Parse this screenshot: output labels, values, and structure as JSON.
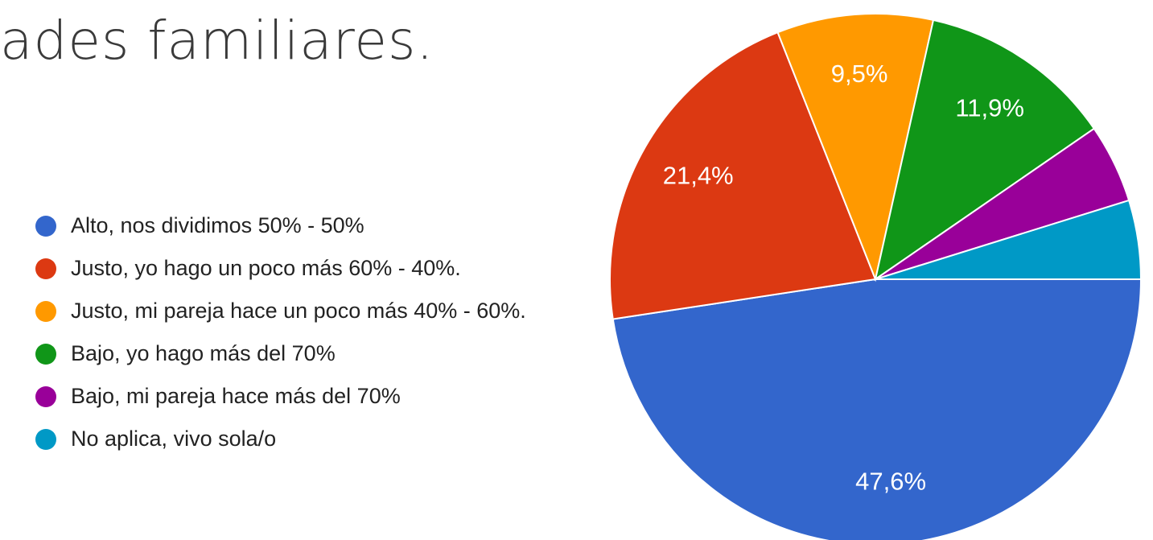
{
  "chart_data": {
    "type": "pie",
    "title": "ades familiares.",
    "categories": [
      "Alto, nos dividimos 50% - 50%",
      "Justo, yo hago un poco más 60% - 40%.",
      "Justo, mi pareja hace un poco más 40% - 60%.",
      "Bajo, yo hago más del 70%",
      "Bajo, mi pareja hace más del 70%",
      "No aplica, vivo sola/o"
    ],
    "values": [
      47.6,
      21.4,
      9.5,
      11.9,
      4.8,
      4.8
    ],
    "value_labels": [
      "47,6%",
      "21,4%",
      "9,5%",
      "11,9%",
      null,
      null
    ],
    "colors": [
      "#3366cc",
      "#dc3912",
      "#ff9900",
      "#109618",
      "#990099",
      "#0099c6"
    ],
    "legend": "left"
  }
}
